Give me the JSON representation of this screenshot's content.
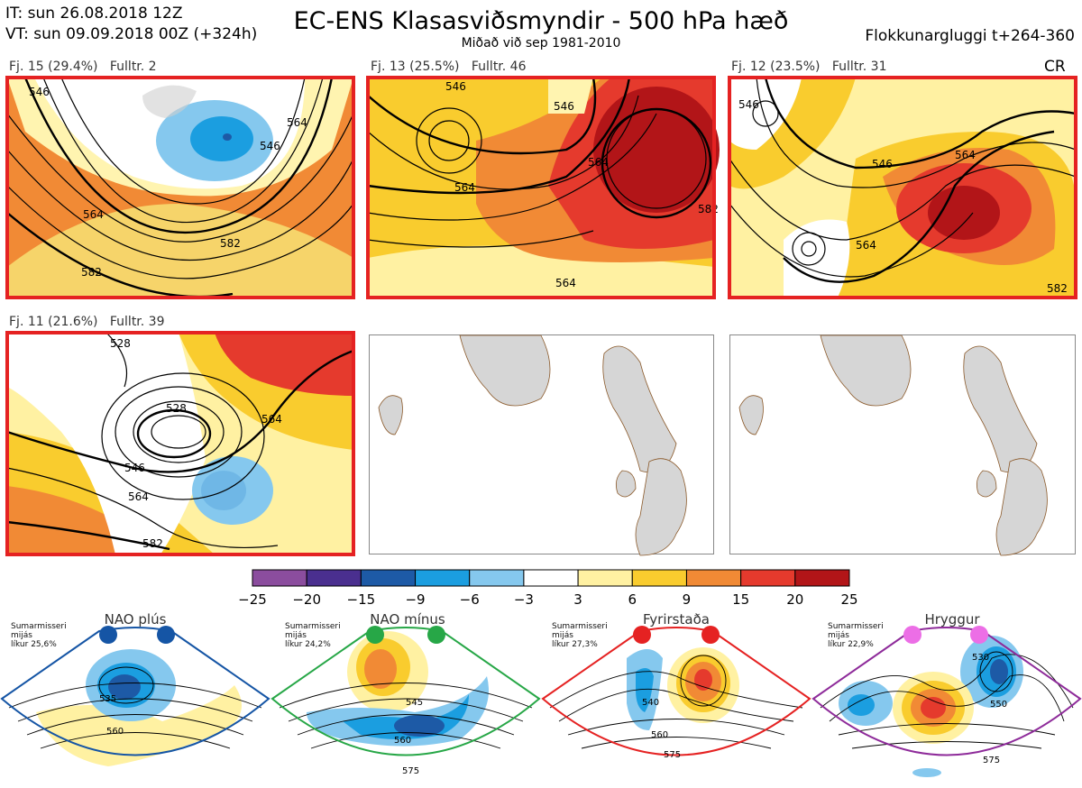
{
  "header": {
    "it_line": "IT: sun 26.08.2018 12Z",
    "vt_line": "VT: sun 09.09.2018 00Z  (+324h)",
    "title": "EC-ENS Klasasviðsmyndir - 500 hPa hæð",
    "subtitle": "Miðað við sep 1981-2010",
    "window": "Flokkunargluggi t+264-360"
  },
  "panels": [
    {
      "label": "Fj. 15 (29.4%)",
      "fulltr": "Fulltr. 2",
      "contour_labels": [
        "546",
        "564",
        "582",
        "564",
        "546",
        "582"
      ]
    },
    {
      "label": "Fj. 13 (25.5%)",
      "fulltr": "Fulltr. 46",
      "contour_labels": [
        "546",
        "564",
        "564",
        "546",
        "564",
        "582"
      ]
    },
    {
      "label": "Fj. 12 (23.5%)",
      "fulltr": "Fulltr. 31",
      "contour_labels": [
        "546",
        "546",
        "564",
        "564",
        "582"
      ]
    },
    {
      "label": "Fj. 11 (21.6%)",
      "fulltr": "Fulltr. 39",
      "contour_labels": [
        "528",
        "546",
        "564",
        "564",
        "582",
        "528"
      ]
    }
  ],
  "cr_label": "CR",
  "colorbar": {
    "ticks": [
      "−25",
      "−20",
      "−15",
      "−9",
      "−6",
      "−3",
      "3",
      "6",
      "9",
      "15",
      "20",
      "25"
    ],
    "colors": [
      "#8b4d9e",
      "#4a2f8f",
      "#1d5aa6",
      "#1b9ee0",
      "#85c8ee",
      "#ffffff",
      "#fff1a2",
      "#f9cc2e",
      "#f18a35",
      "#e53a2d",
      "#b21518"
    ]
  },
  "regimes": [
    {
      "name": "NAO plús",
      "note": [
        "Sumarmisseri",
        "mijás",
        "líkur 25,6%"
      ],
      "color": "#1555a5",
      "labels": [
        "535",
        "560"
      ]
    },
    {
      "name": "NAO mínus",
      "note": [
        "Sumarmisseri",
        "mijás",
        "líkur 24,2%"
      ],
      "color": "#27a747",
      "labels": [
        "545",
        "560",
        "575"
      ]
    },
    {
      "name": "Fyrirstaða",
      "note": [
        "Sumarmisseri",
        "mijás",
        "líkur 27,3%"
      ],
      "color": "#e52222",
      "labels": [
        "540",
        "560",
        "575"
      ]
    },
    {
      "name": "Hryggur",
      "note": [
        "Sumarmisseri",
        "mijás",
        "líkur 22,9%"
      ],
      "color": "#ec6ee6",
      "labels": [
        "530",
        "550",
        "575"
      ]
    }
  ]
}
